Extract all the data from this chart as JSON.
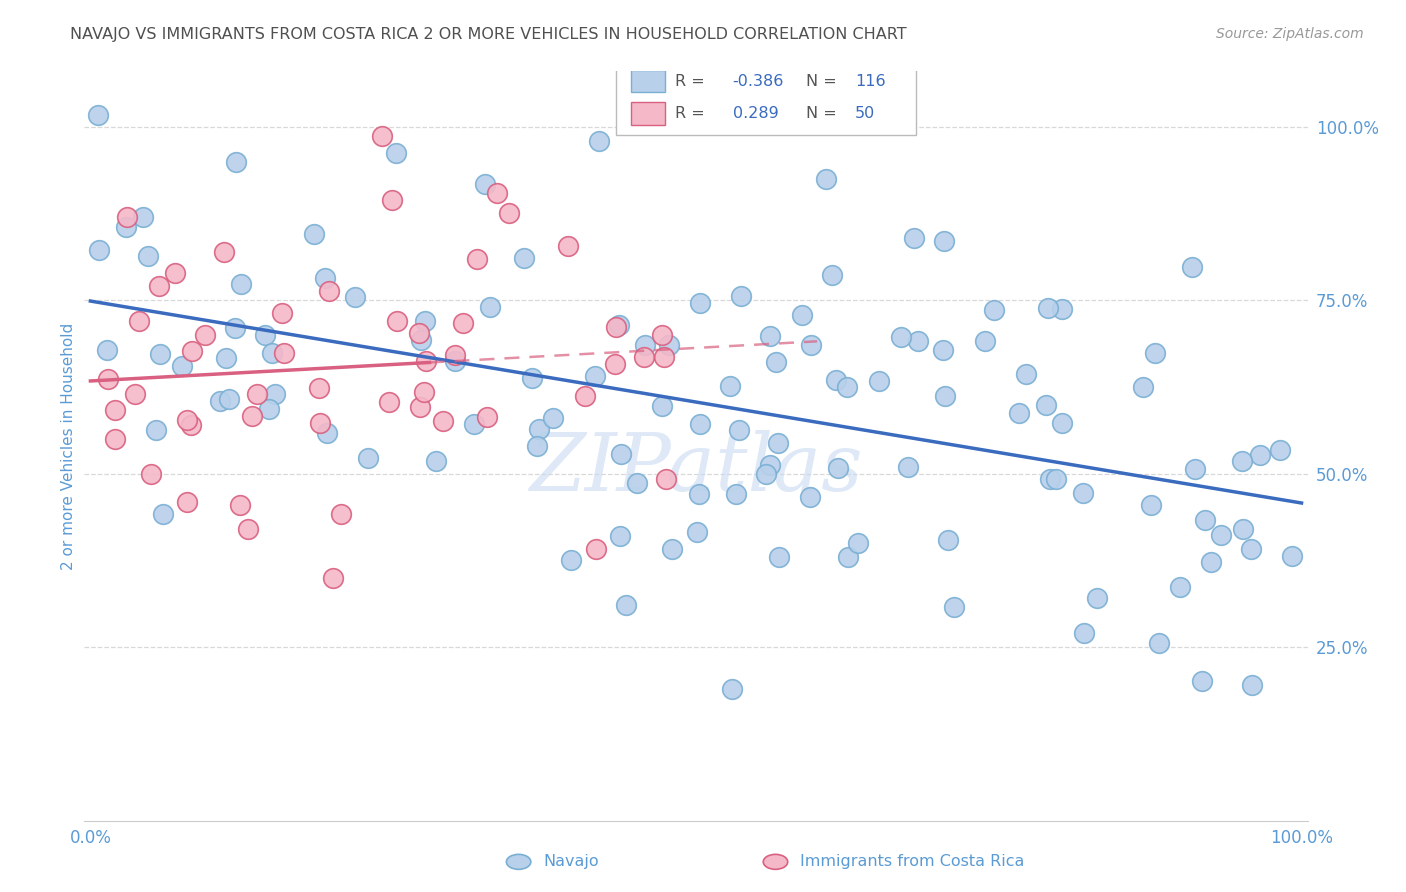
{
  "title": "NAVAJO VS IMMIGRANTS FROM COSTA RICA 2 OR MORE VEHICLES IN HOUSEHOLD CORRELATION CHART",
  "source": "Source: ZipAtlas.com",
  "ylabel": "2 or more Vehicles in Household",
  "navajo_R": -0.386,
  "navajo_N": 116,
  "costarica_R": 0.289,
  "costarica_N": 50,
  "navajo_color": "#b8d0ea",
  "navajo_edge": "#7aafd4",
  "costarica_color": "#f4b8c8",
  "costarica_edge": "#d96080",
  "navajo_line_color": "#3a6bbf",
  "costarica_line_color": "#d96080",
  "watermark_color": "#c8daf0",
  "background_color": "#ffffff",
  "grid_color": "#d8d8d8",
  "title_color": "#505050",
  "axis_label_color": "#5b9bd5",
  "legend_R_color": "#3a6bbf",
  "legend_N_color": "#3a6bbf"
}
